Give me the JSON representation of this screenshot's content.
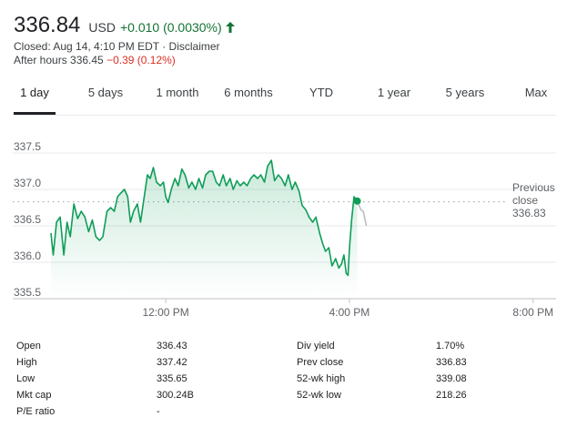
{
  "header": {
    "price": "336.84",
    "currency": "USD",
    "change": "+0.010 (0.0030%)",
    "closed_text": "Closed: Aug 14, 4:10 PM EDT · ",
    "disclaimer": "Disclaimer",
    "after_hours_label": "After hours 336.45 ",
    "after_hours_change": "−0.39 (0.12%)"
  },
  "tabs": [
    {
      "label": "1 day",
      "active": true
    },
    {
      "label": "5 days",
      "active": false
    },
    {
      "label": "1 month",
      "active": false
    },
    {
      "label": "6 months",
      "active": false
    },
    {
      "label": "YTD",
      "active": false
    },
    {
      "label": "1 year",
      "active": false
    },
    {
      "label": "5 years",
      "active": false
    },
    {
      "label": "Max",
      "active": false
    }
  ],
  "chart_data": {
    "type": "line",
    "x_unit": "time of day (hours, 9.5 = 9:30 AM)",
    "x_ticks": [
      {
        "value": 12,
        "label": "12:00 PM"
      },
      {
        "value": 16,
        "label": "4:00 PM"
      },
      {
        "value": 20,
        "label": "8:00 PM"
      }
    ],
    "xlim": [
      9.5,
      20.5
    ],
    "ylim": [
      335.5,
      337.6
    ],
    "y_ticks": [
      {
        "value": 335.5,
        "label": "335.5"
      },
      {
        "value": 336.0,
        "label": "336.0"
      },
      {
        "value": 336.5,
        "label": "336.5"
      },
      {
        "value": 337.0,
        "label": "337.0"
      },
      {
        "value": 337.5,
        "label": "337.5"
      }
    ],
    "previous_close": 336.83,
    "previous_close_label": [
      "Previous",
      "close",
      "336.83"
    ],
    "line_color": "#0f9d58",
    "after_hours_color": "#bdbdbd",
    "series": [
      {
        "name": "",
        "points": [
          [
            9.5,
            336.4
          ],
          [
            9.55,
            336.1
          ],
          [
            9.62,
            336.55
          ],
          [
            9.7,
            336.62
          ],
          [
            9.78,
            336.1
          ],
          [
            9.85,
            336.55
          ],
          [
            9.92,
            336.35
          ],
          [
            10.0,
            336.8
          ],
          [
            10.08,
            336.6
          ],
          [
            10.16,
            336.7
          ],
          [
            10.24,
            336.62
          ],
          [
            10.32,
            336.42
          ],
          [
            10.4,
            336.58
          ],
          [
            10.48,
            336.35
          ],
          [
            10.56,
            336.3
          ],
          [
            10.63,
            336.35
          ],
          [
            10.72,
            336.7
          ],
          [
            10.8,
            336.75
          ],
          [
            10.88,
            336.7
          ],
          [
            10.95,
            336.9
          ],
          [
            11.02,
            336.95
          ],
          [
            11.1,
            337.0
          ],
          [
            11.17,
            336.9
          ],
          [
            11.23,
            336.55
          ],
          [
            11.3,
            336.7
          ],
          [
            11.38,
            336.8
          ],
          [
            11.45,
            336.55
          ],
          [
            11.52,
            336.85
          ],
          [
            11.6,
            337.2
          ],
          [
            11.66,
            337.15
          ],
          [
            11.73,
            337.3
          ],
          [
            11.8,
            337.1
          ],
          [
            11.88,
            337.05
          ],
          [
            11.95,
            337.1
          ],
          [
            12.0,
            336.9
          ],
          [
            12.05,
            336.82
          ],
          [
            12.12,
            337.0
          ],
          [
            12.2,
            337.15
          ],
          [
            12.27,
            337.05
          ],
          [
            12.35,
            337.28
          ],
          [
            12.42,
            337.2
          ],
          [
            12.5,
            337.02
          ],
          [
            12.57,
            337.1
          ],
          [
            12.65,
            337.0
          ],
          [
            12.72,
            337.15
          ],
          [
            12.8,
            337.02
          ],
          [
            12.87,
            337.2
          ],
          [
            12.95,
            337.25
          ],
          [
            13.02,
            337.25
          ],
          [
            13.1,
            337.1
          ],
          [
            13.17,
            337.05
          ],
          [
            13.25,
            337.2
          ],
          [
            13.32,
            337.05
          ],
          [
            13.4,
            337.15
          ],
          [
            13.47,
            337.0
          ],
          [
            13.55,
            337.12
          ],
          [
            13.62,
            337.05
          ],
          [
            13.7,
            337.1
          ],
          [
            13.77,
            337.05
          ],
          [
            13.85,
            337.15
          ],
          [
            13.92,
            337.2
          ],
          [
            14.0,
            337.15
          ],
          [
            14.07,
            337.2
          ],
          [
            14.15,
            337.1
          ],
          [
            14.22,
            337.32
          ],
          [
            14.3,
            337.4
          ],
          [
            14.37,
            337.12
          ],
          [
            14.45,
            337.2
          ],
          [
            14.52,
            337.15
          ],
          [
            14.6,
            337.05
          ],
          [
            14.67,
            337.2
          ],
          [
            14.75,
            337.0
          ],
          [
            14.82,
            337.1
          ],
          [
            14.9,
            336.98
          ],
          [
            14.97,
            336.78
          ],
          [
            15.05,
            336.72
          ],
          [
            15.12,
            336.62
          ],
          [
            15.2,
            336.55
          ],
          [
            15.27,
            336.62
          ],
          [
            15.35,
            336.4
          ],
          [
            15.42,
            336.25
          ],
          [
            15.48,
            336.15
          ],
          [
            15.55,
            336.2
          ],
          [
            15.62,
            335.95
          ],
          [
            15.7,
            336.05
          ],
          [
            15.77,
            335.92
          ],
          [
            15.83,
            335.98
          ],
          [
            15.88,
            336.1
          ],
          [
            15.93,
            335.85
          ],
          [
            15.97,
            335.82
          ],
          [
            16.0,
            336.2
          ],
          [
            16.05,
            336.6
          ],
          [
            16.1,
            336.9
          ],
          [
            16.17,
            336.84
          ]
        ]
      },
      {
        "name": "",
        "points": [
          [
            16.17,
            336.84
          ],
          [
            16.25,
            336.72
          ],
          [
            16.3,
            336.7
          ],
          [
            16.37,
            336.5
          ]
        ]
      }
    ]
  },
  "stats": {
    "left": [
      {
        "label": "Open",
        "value": "336.43"
      },
      {
        "label": "High",
        "value": "337.42"
      },
      {
        "label": "Low",
        "value": "335.65"
      },
      {
        "label": "Mkt cap",
        "value": "300.24B"
      },
      {
        "label": "P/E ratio",
        "value": "-"
      }
    ],
    "right": [
      {
        "label": "Div yield",
        "value": "1.70%"
      },
      {
        "label": "Prev close",
        "value": "336.83"
      },
      {
        "label": "52-wk high",
        "value": "339.08"
      },
      {
        "label": "52-wk low",
        "value": "218.26"
      }
    ]
  }
}
